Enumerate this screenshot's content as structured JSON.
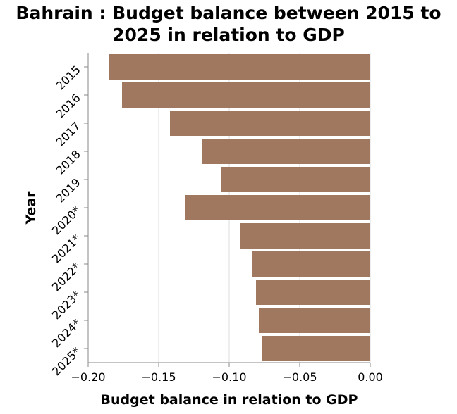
{
  "chart_data": {
    "type": "bar",
    "orientation": "horizontal",
    "title": "Bahrain : Budget balance between 2015 to 2025 in relation to GDP",
    "title_lines": [
      "Bahrain : Budget balance between 2015 to",
      "2025 in relation to GDP"
    ],
    "xlabel": "Budget balance in relation to GDP",
    "ylabel": "Year",
    "categories": [
      "2015",
      "2016",
      "2017",
      "2018",
      "2019",
      "2020*",
      "2021*",
      "2022*",
      "2023*",
      "2024*",
      "2025*"
    ],
    "values": [
      -0.185,
      -0.176,
      -0.142,
      -0.119,
      -0.106,
      -0.131,
      -0.092,
      -0.084,
      -0.081,
      -0.079,
      -0.077
    ],
    "xlim": [
      -0.2,
      0.0
    ],
    "xticks": [
      -0.2,
      -0.15,
      -0.1,
      -0.05,
      0.0
    ],
    "xtick_labels": [
      "−0.20",
      "−0.15",
      "−0.10",
      "−0.05",
      "0.00"
    ],
    "grid": "vertical",
    "bar_color": "#a0785f",
    "grid_color": "#dddddd",
    "axis_color": "#888888"
  }
}
